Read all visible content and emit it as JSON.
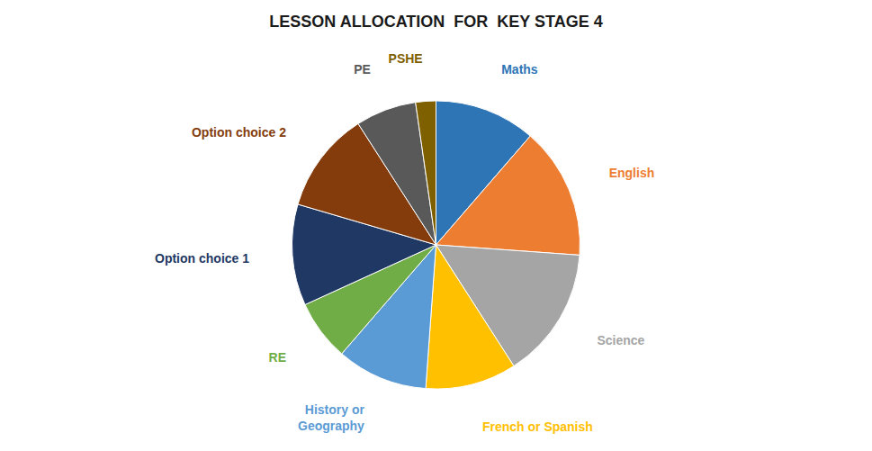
{
  "chart_data": {
    "type": "pie",
    "title": "LESSON ALLOCATION  FOR  KEY STAGE 4",
    "categories": [
      "Maths",
      "English",
      "Science",
      "French or Spanish",
      "History or\nGeography",
      "RE",
      "Option choice 1",
      "Option choice 2",
      "PE",
      "PSHE"
    ],
    "values": [
      10,
      13,
      13,
      9,
      9,
      6,
      10,
      10,
      6,
      2
    ],
    "colors": [
      "#2E75B6",
      "#ED7D31",
      "#A5A5A5",
      "#FFC000",
      "#5B9BD5",
      "#70AD47",
      "#1F3864",
      "#843C0C",
      "#595959",
      "#7F6000"
    ]
  }
}
